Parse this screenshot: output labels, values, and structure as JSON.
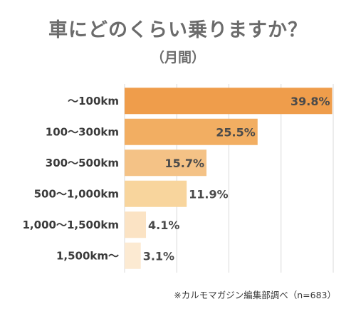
{
  "header": {
    "title": "車にどのくらい乗りますか？",
    "subtitle": "（月間）"
  },
  "chart_data": {
    "type": "bar",
    "orientation": "horizontal",
    "categories": [
      "〜100km",
      "100〜300km",
      "300〜500km",
      "500〜1,000km",
      "1,000〜1,500km",
      "1,500km〜"
    ],
    "values": [
      39.8,
      25.5,
      15.7,
      11.9,
      4.1,
      3.1
    ],
    "value_labels": [
      "39.8%",
      "25.5%",
      "15.7%",
      "11.9%",
      "4.1%",
      "3.1%"
    ],
    "bar_colors": [
      "#ef9d4b",
      "#f2ae62",
      "#f4c286",
      "#f8d59d",
      "#fbe3c4",
      "#fcead2"
    ],
    "xlim": [
      0,
      40
    ],
    "grid": true
  },
  "footnote": "※カルモマガジン編集部調べ（n=683）"
}
